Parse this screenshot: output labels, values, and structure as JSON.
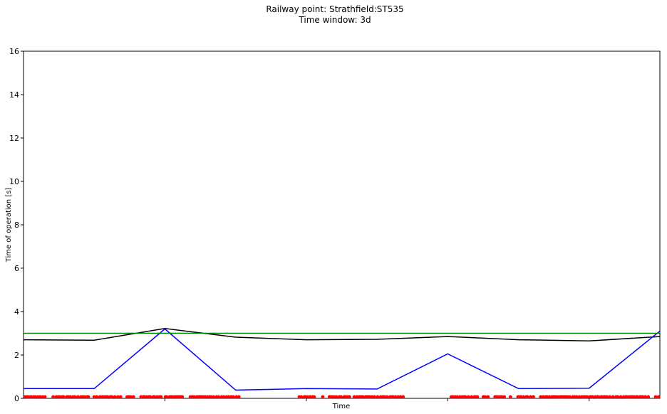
{
  "chart_data": {
    "type": "line",
    "title": "Railway point: Strathfield:ST535",
    "subtitle": "Time window: 3d",
    "xlabel": "Time",
    "ylabel": "Time of operation [s]",
    "ylim": [
      0,
      16
    ],
    "yticks": [
      "0",
      "2",
      "4",
      "6",
      "8",
      "10",
      "12",
      "14",
      "16"
    ],
    "xlim": [
      0,
      9
    ],
    "xtick_positions": [
      2,
      4,
      6,
      8
    ],
    "grid": false,
    "legend": "none",
    "series": [
      {
        "color": "#000000",
        "x": [
          0,
          1,
          2,
          3,
          4,
          5,
          6,
          7,
          8,
          9
        ],
        "values": [
          2.7,
          2.68,
          3.22,
          2.82,
          2.7,
          2.72,
          2.85,
          2.7,
          2.65,
          2.85
        ]
      },
      {
        "color": "#0000ff",
        "x": [
          0,
          1,
          2,
          3,
          4,
          5,
          6,
          7,
          8,
          9
        ],
        "values": [
          0.45,
          0.45,
          3.2,
          0.38,
          0.45,
          0.43,
          2.05,
          0.45,
          0.47,
          3.1
        ]
      },
      {
        "color": "#008000",
        "x": [
          0,
          9
        ],
        "values": [
          3.0,
          3.0
        ]
      }
    ],
    "scatter": {
      "color": "#ff0000",
      "y": 0.07,
      "x_ranges": [
        [
          0.02,
          3.05
        ],
        [
          3.9,
          5.4
        ],
        [
          6.05,
          9.0
        ]
      ]
    }
  }
}
